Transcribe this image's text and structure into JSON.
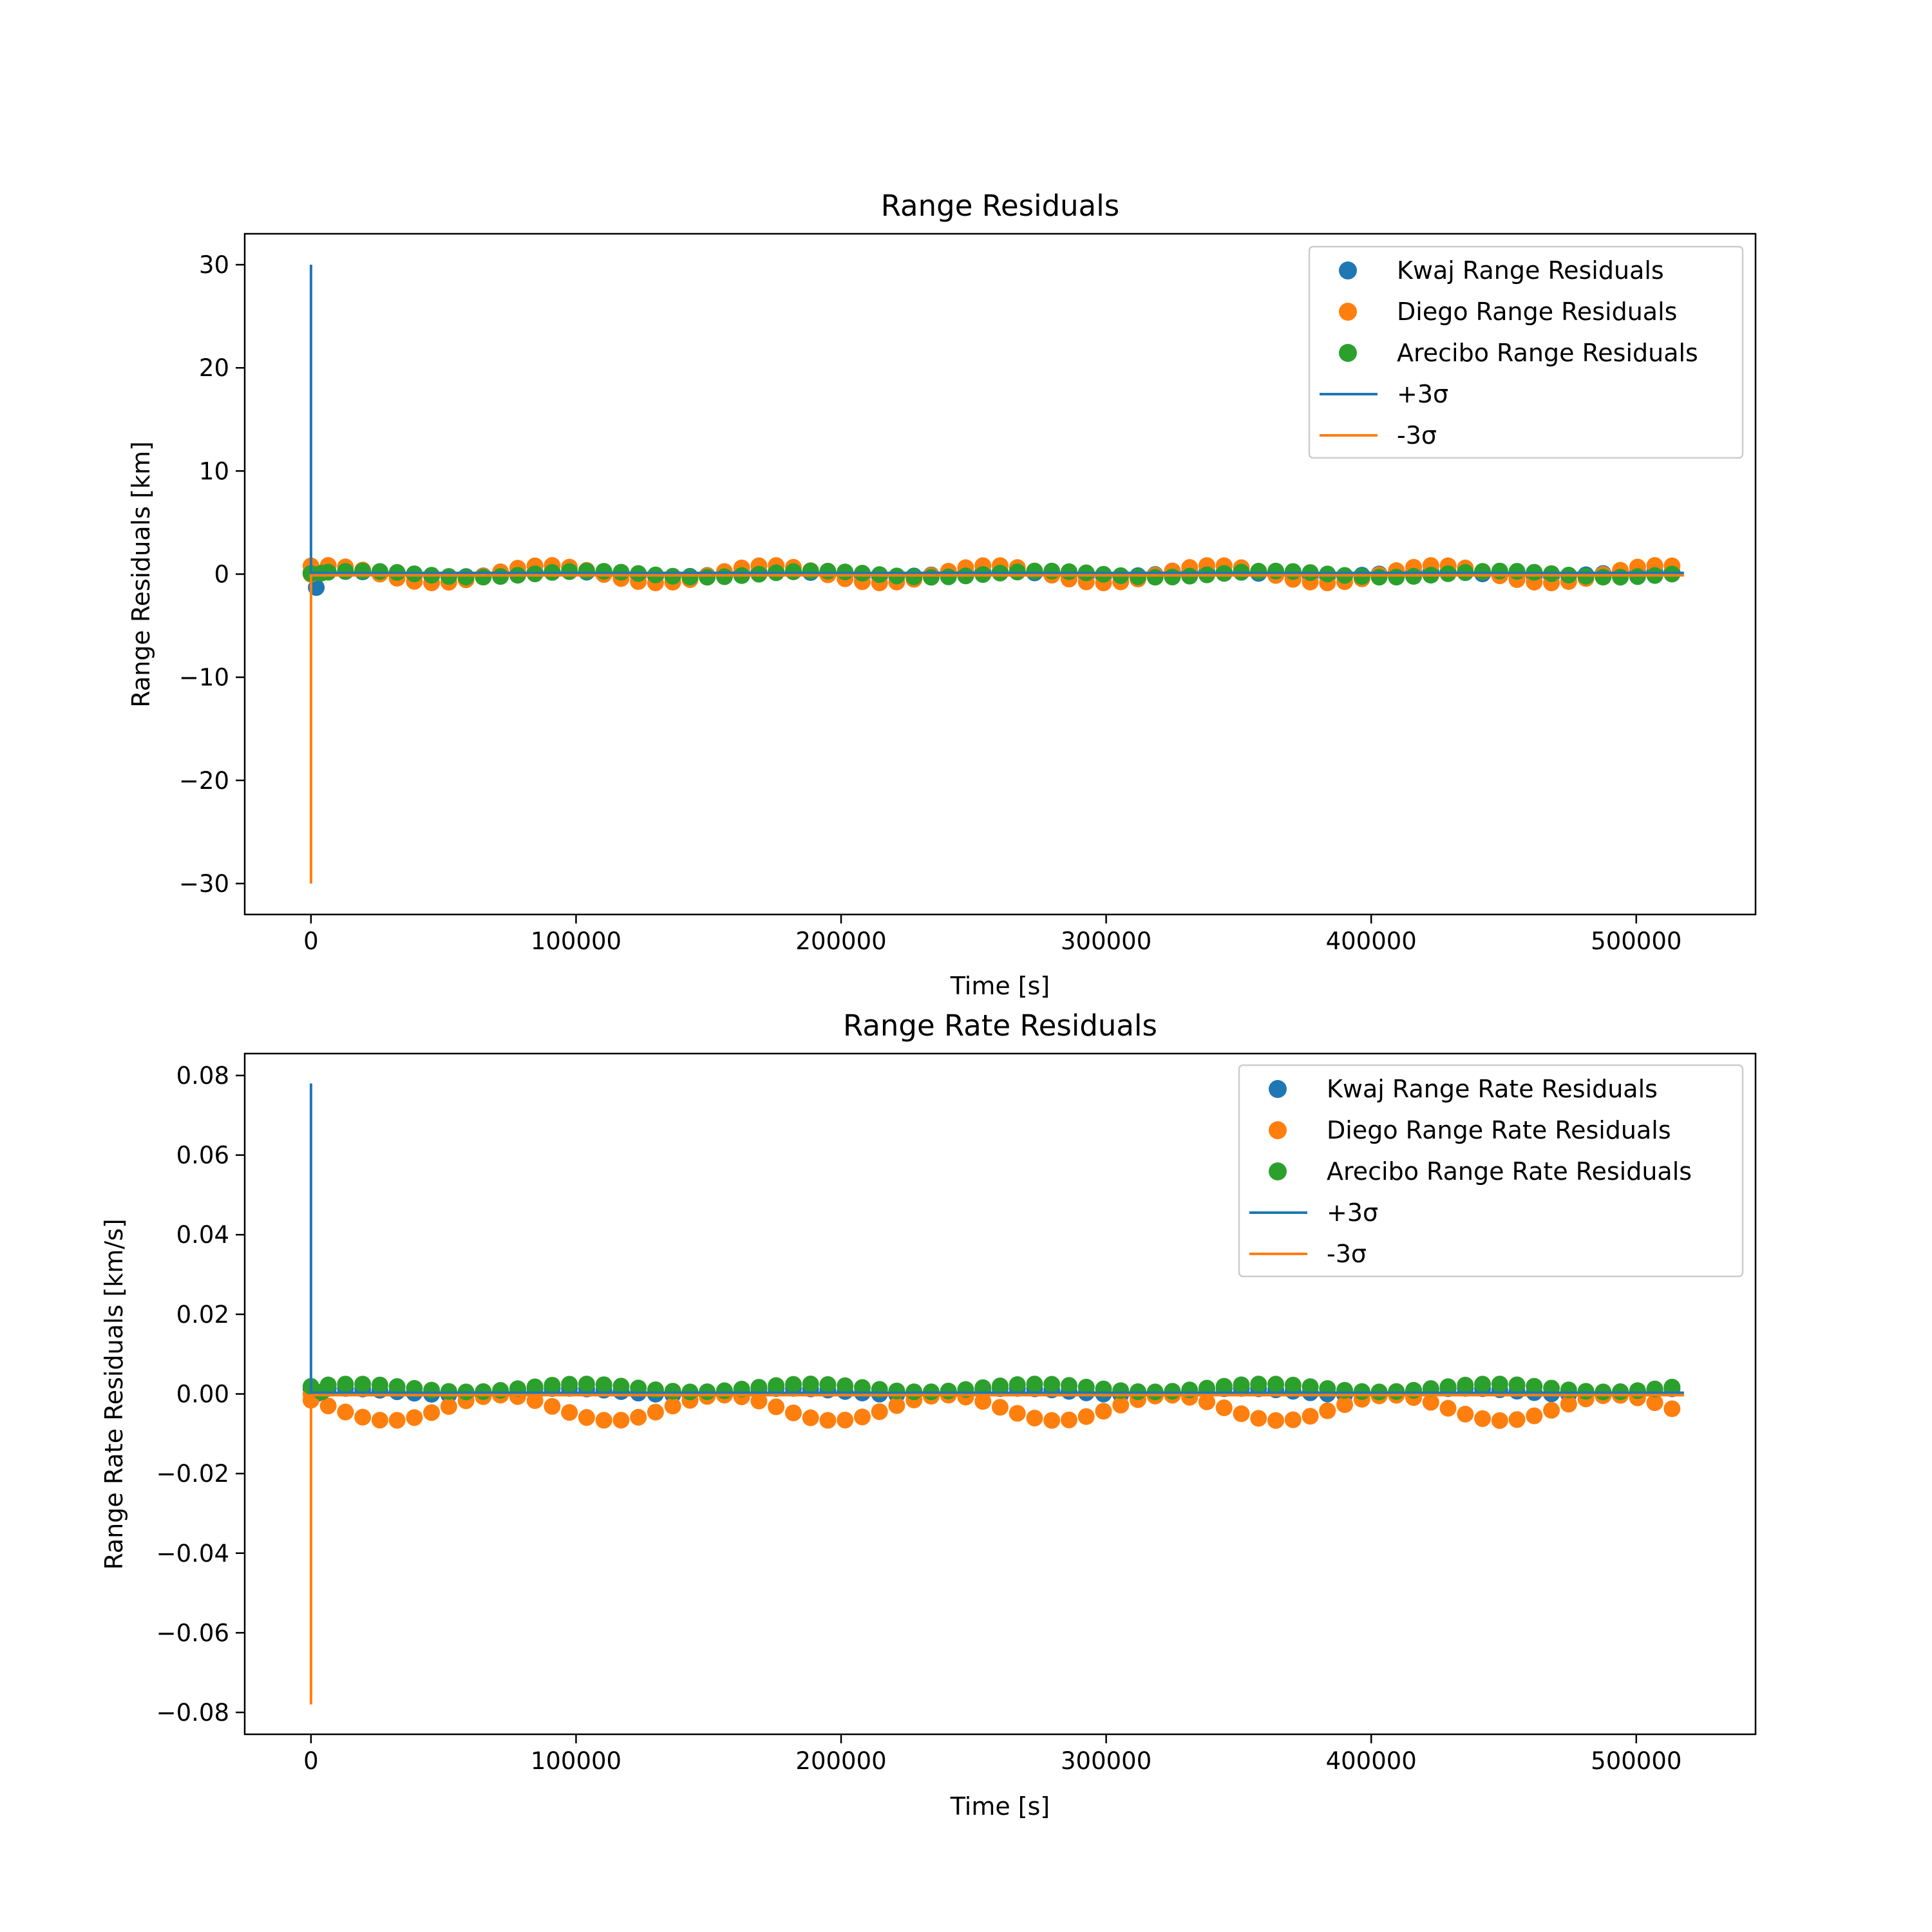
{
  "chart_data": [
    {
      "type": "scatter",
      "title": "Range Residuals",
      "xlabel": "Time [s]",
      "ylabel": "Range Residuals [km]",
      "xlim": [
        -25000,
        545000
      ],
      "ylim": [
        -33,
        33
      ],
      "xticks": [
        0,
        100000,
        200000,
        300000,
        400000,
        500000
      ],
      "xtick_labels": [
        "0",
        "100000",
        "200000",
        "300000",
        "400000",
        "500000"
      ],
      "yticks": [
        -30,
        -20,
        -10,
        0,
        10,
        20,
        30
      ],
      "ytick_labels": [
        "−30",
        "−20",
        "−10",
        "0",
        "10",
        "20",
        "30"
      ],
      "grid": false,
      "legend_position": "top-right",
      "x_start": 0,
      "x_end": 518000,
      "x_step": 6500,
      "series": [
        {
          "name": "Kwaj Range Residuals",
          "kind": "scatter",
          "color": "#1f77b4",
          "first_point": [
            2000,
            -1.3
          ],
          "amplitude": 0.25,
          "period": 82000,
          "phase": 0.6
        },
        {
          "name": "Diego Range Residuals",
          "kind": "scatter",
          "color": "#ff7f0e",
          "first_point": [
            0,
            0.0
          ],
          "amplitude": 0.85,
          "period": 84000,
          "phase": 1.2
        },
        {
          "name": "Arecibo Range Residuals",
          "kind": "scatter",
          "color": "#2ca02c",
          "first_point": [
            4000,
            0.1
          ],
          "amplitude": 0.3,
          "period": 86000,
          "phase": 0.2
        },
        {
          "name": "+3σ",
          "kind": "line",
          "color": "#1f77b4",
          "x": [
            0,
            0,
            518000
          ],
          "y": [
            30,
            0.12,
            0.12
          ]
        },
        {
          "name": "-3σ",
          "kind": "line",
          "color": "#ff7f0e",
          "x": [
            0,
            0,
            518000
          ],
          "y": [
            -30,
            -0.12,
            -0.12
          ]
        }
      ]
    },
    {
      "type": "scatter",
      "title": "Range Rate Residuals",
      "xlabel": "Time [s]",
      "ylabel": "Range Rate Residuals [km/s]",
      "xlim": [
        -25000,
        545000
      ],
      "ylim": [
        -0.0855,
        0.0855
      ],
      "xticks": [
        0,
        100000,
        200000,
        300000,
        400000,
        500000
      ],
      "xtick_labels": [
        "0",
        "100000",
        "200000",
        "300000",
        "400000",
        "500000"
      ],
      "yticks": [
        -0.08,
        -0.06,
        -0.04,
        -0.02,
        0,
        0.02,
        0.04,
        0.06,
        0.08
      ],
      "ytick_labels": [
        "−0.08",
        "−0.06",
        "−0.04",
        "−0.02",
        "0.00",
        "0.02",
        "0.04",
        "0.06",
        "0.08"
      ],
      "grid": false,
      "legend_position": "top-right",
      "x_start": 0,
      "x_end": 518000,
      "x_step": 6500,
      "series": [
        {
          "name": "Kwaj Range Rate Residuals",
          "kind": "scatter",
          "color": "#1f77b4",
          "first_point": [
            2000,
            0.0
          ],
          "offset": 0.0006,
          "amplitude": 0.0008,
          "period": 85000,
          "phase": 0.8
        },
        {
          "name": "Diego Range Rate Residuals",
          "kind": "scatter",
          "color": "#ff7f0e",
          "first_point": [
            0,
            0.0
          ],
          "offset": -0.0035,
          "amplitude": 0.0032,
          "period": 84000,
          "phase": 2.5
        },
        {
          "name": "Arecibo Range Rate Residuals",
          "kind": "scatter",
          "color": "#2ca02c",
          "first_point": [
            4000,
            0.0005
          ],
          "offset": 0.0015,
          "amplitude": 0.001,
          "period": 86000,
          "phase": 0.4
        },
        {
          "name": "+3σ",
          "kind": "line",
          "color": "#1f77b4",
          "x": [
            0,
            0,
            518000
          ],
          "y": [
            0.078,
            0.0003,
            0.0003
          ]
        },
        {
          "name": "-3σ",
          "kind": "line",
          "color": "#ff7f0e",
          "x": [
            0,
            0,
            518000
          ],
          "y": [
            -0.078,
            -0.0003,
            -0.0003
          ]
        }
      ]
    }
  ]
}
